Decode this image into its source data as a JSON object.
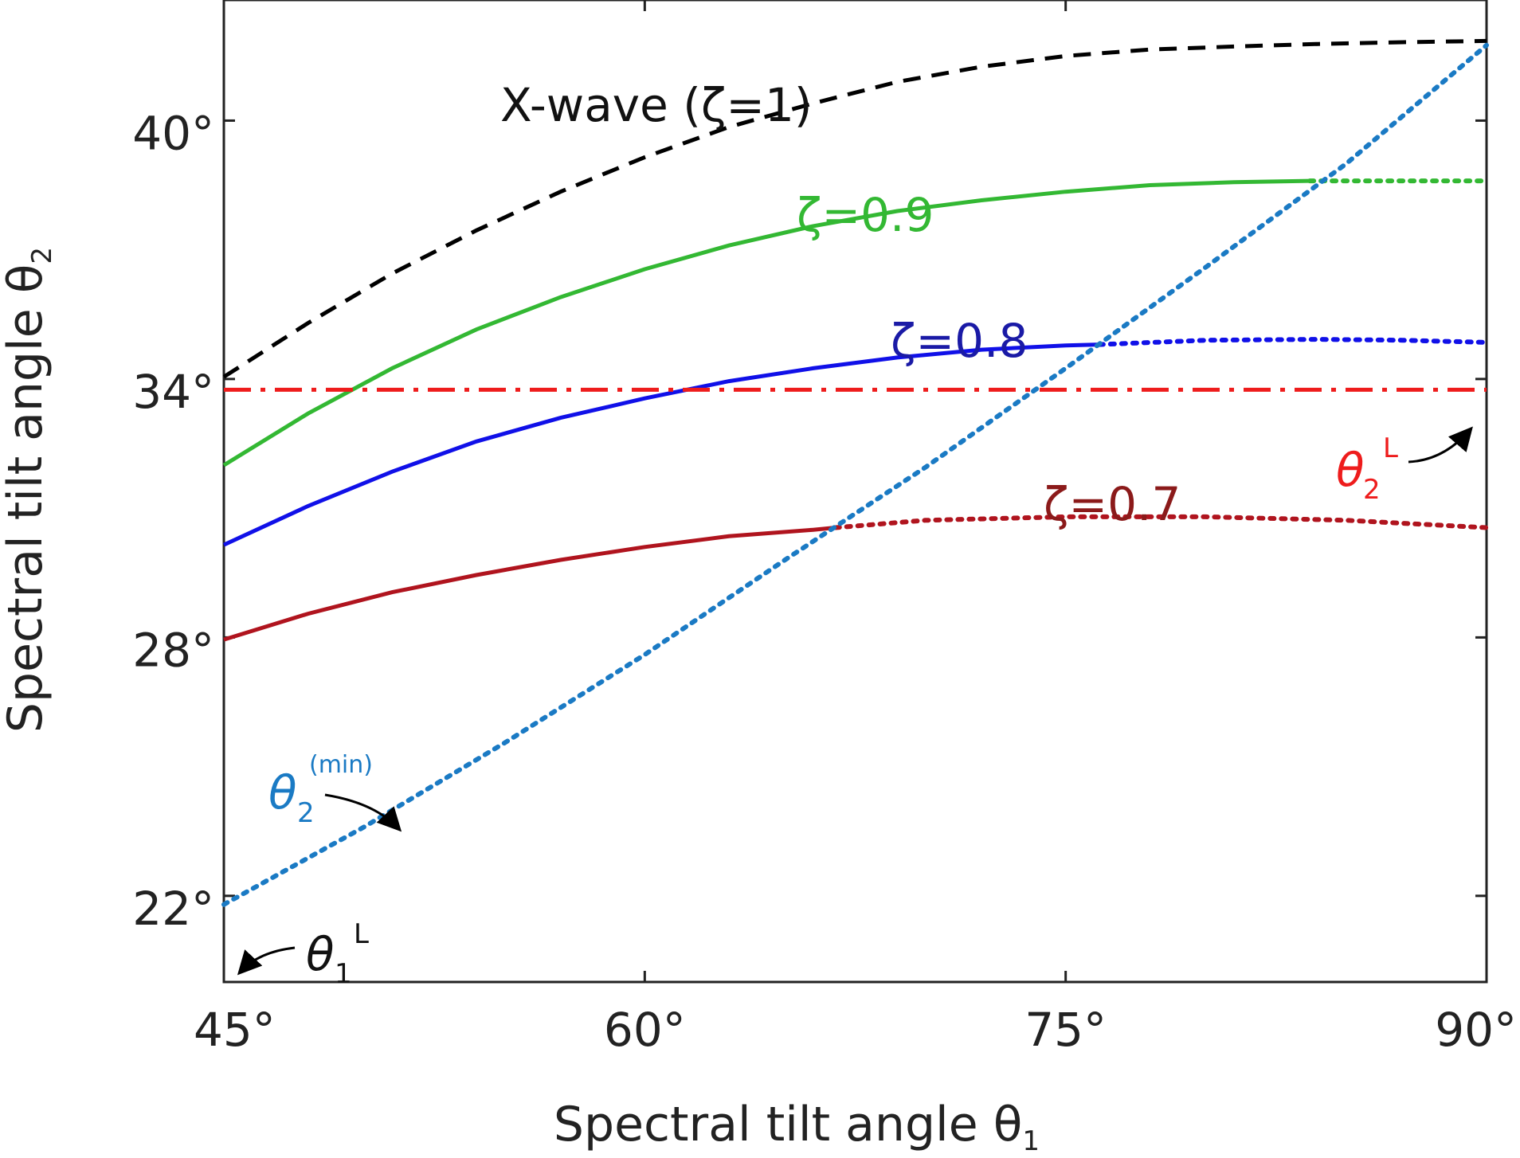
{
  "chart_data": {
    "type": "line",
    "xlabel": "Spectral tilt angle θ",
    "xlabel_sub": "1",
    "ylabel": "Spectral tilt angle θ",
    "ylabel_sub": "2",
    "xlim": [
      45,
      90
    ],
    "ylim": [
      20,
      42.8
    ],
    "x_ticks": [
      45,
      60,
      75,
      90
    ],
    "y_ticks": [
      22,
      28,
      34,
      40
    ],
    "x_tick_labels": [
      "45°",
      "60°",
      "75°",
      "90°"
    ],
    "y_tick_labels": [
      "22°",
      "28°",
      "34°",
      "40°"
    ],
    "series": [
      {
        "name": "X-wave (ζ=1)",
        "color": "#000000",
        "style": "dashed",
        "x": [
          45,
          48,
          51,
          54,
          57,
          60,
          63,
          66,
          69,
          72,
          75,
          78,
          81,
          84,
          87,
          90
        ],
        "y": [
          34.05,
          35.3,
          36.45,
          37.45,
          38.35,
          39.15,
          39.85,
          40.4,
          40.9,
          41.25,
          41.5,
          41.65,
          41.72,
          41.78,
          41.82,
          41.85
        ]
      },
      {
        "name": "ζ=0.9",
        "color": "#33b833",
        "style": "solid",
        "x": [
          45,
          48,
          51,
          54,
          57,
          60,
          63,
          66,
          69,
          72,
          75,
          78,
          81,
          83.7
        ],
        "y": [
          32.0,
          33.2,
          34.25,
          35.15,
          35.9,
          36.55,
          37.1,
          37.55,
          37.9,
          38.15,
          38.35,
          38.5,
          38.57,
          38.6
        ]
      },
      {
        "name": "ζ=0.9 (extension)",
        "color": "#33b833",
        "style": "dotted",
        "x": [
          83.7,
          87,
          90
        ],
        "y": [
          38.6,
          38.6,
          38.6
        ]
      },
      {
        "name": "ζ=0.8",
        "color": "#1010e8",
        "style": "solid",
        "x": [
          45,
          48,
          51,
          54,
          57,
          60,
          63,
          66,
          69,
          72,
          75,
          76.2
        ],
        "y": [
          30.15,
          31.05,
          31.85,
          32.55,
          33.1,
          33.55,
          33.95,
          34.25,
          34.5,
          34.68,
          34.78,
          34.8
        ]
      },
      {
        "name": "ζ=0.8 (extension)",
        "color": "#1010e8",
        "style": "dotted",
        "x": [
          76.2,
          80,
          84,
          87,
          90
        ],
        "y": [
          34.8,
          34.9,
          34.92,
          34.9,
          34.85
        ]
      },
      {
        "name": "ζ=0.7",
        "color": "#b0141e",
        "style": "solid",
        "x": [
          45,
          48,
          51,
          54,
          57,
          60,
          63,
          66,
          66.8
        ],
        "y": [
          27.95,
          28.55,
          29.05,
          29.45,
          29.8,
          30.1,
          30.35,
          30.5,
          30.55
        ]
      },
      {
        "name": "ζ=0.7 (extension)",
        "color": "#b0141e",
        "style": "dotted",
        "x": [
          66.8,
          70,
          75,
          80,
          85,
          90
        ],
        "y": [
          30.55,
          30.72,
          30.8,
          30.8,
          30.72,
          30.55
        ]
      },
      {
        "name": "θ2(min)",
        "color": "#1a7ac4",
        "style": "dotted",
        "x": [
          45,
          50,
          55,
          60,
          65,
          70,
          75,
          80,
          85,
          90
        ],
        "y": [
          21.8,
          23.6,
          25.55,
          27.6,
          29.8,
          31.95,
          34.25,
          36.6,
          39.0,
          41.75
        ]
      },
      {
        "name": "θ2L",
        "color": "#ee1c1c",
        "style": "dashdot",
        "x": [
          45,
          90
        ],
        "y": [
          33.75,
          33.75
        ]
      }
    ],
    "annotations": [
      {
        "id": "xwave",
        "text": "X-wave (ζ=1)",
        "color": "#111111"
      },
      {
        "id": "z09",
        "text": "ζ=0.9",
        "color": "#33b833"
      },
      {
        "id": "z08",
        "text": "ζ=0.8",
        "color": "#1a1aa6"
      },
      {
        "id": "z07",
        "text": "ζ=0.7",
        "color": "#8b1a1a"
      },
      {
        "id": "theta2L",
        "text": "θ",
        "sub": "2",
        "sup": "L",
        "color": "#ee1c1c"
      },
      {
        "id": "theta2min",
        "text": "θ",
        "sub": "2",
        "sup": "(min)",
        "color": "#1a7ac4"
      },
      {
        "id": "theta1L",
        "text": "θ",
        "sub": "1",
        "sup": "L",
        "color": "#111111"
      }
    ]
  }
}
